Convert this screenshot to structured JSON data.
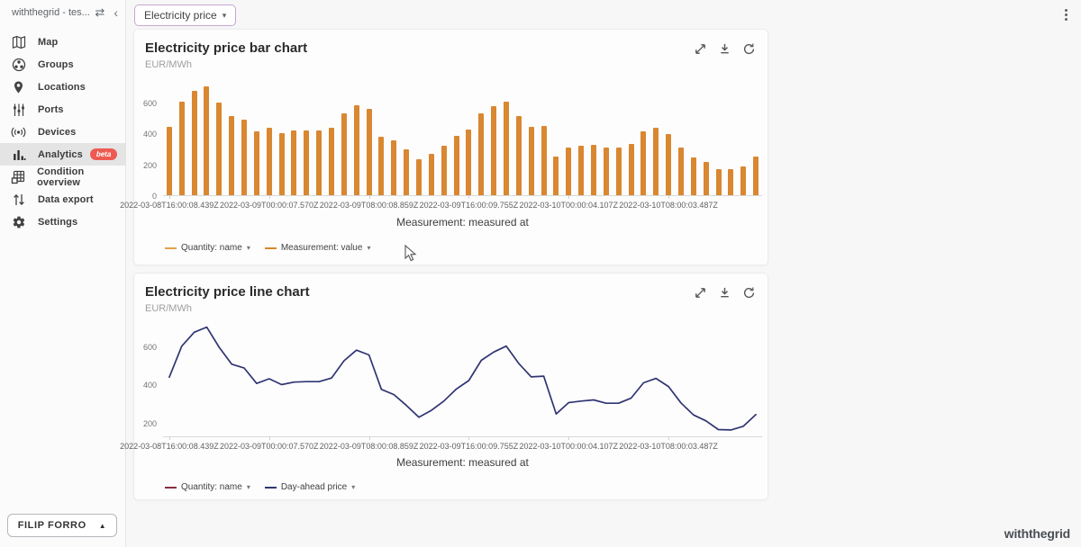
{
  "sidebar": {
    "workspace": "withthegrid - tes...",
    "items": [
      {
        "label": "Map",
        "icon": "map-icon",
        "active": false
      },
      {
        "label": "Groups",
        "icon": "groups-icon",
        "active": false
      },
      {
        "label": "Locations",
        "icon": "location-pin-icon",
        "active": false
      },
      {
        "label": "Ports",
        "icon": "ports-sliders-icon",
        "active": false
      },
      {
        "label": "Devices",
        "icon": "devices-signal-icon",
        "active": false
      },
      {
        "label": "Analytics",
        "icon": "analytics-bars-icon",
        "active": true,
        "badge": "beta"
      },
      {
        "label": "Condition overview",
        "icon": "condition-grid-icon",
        "active": false
      },
      {
        "label": "Data export",
        "icon": "data-export-arrows-icon",
        "active": false
      },
      {
        "label": "Settings",
        "icon": "settings-gear-icon",
        "active": false
      }
    ],
    "user_button": "FILIP FORRO"
  },
  "topbar": {
    "dashboard_selector": "Electricity price"
  },
  "footer": {
    "logo": "withthegrid"
  },
  "colors": {
    "bar": "#d98731",
    "line": "#303572",
    "legend_maroon": "#8b2f3f",
    "legend_orange_light": "#e3a04b",
    "active_row": "#e4e4e5",
    "beta_badge": "#ee5a52"
  },
  "chart_data": [
    {
      "type": "bar",
      "title": "Electricity price bar chart",
      "subtitle": "EUR/MWh",
      "xlabel": "Measurement: measured at",
      "ylabel": "EUR/MWh",
      "ylim": [
        0,
        715
      ],
      "y_ticks": [
        0,
        200,
        400,
        600
      ],
      "grid": false,
      "legend_position": "bottom-left",
      "x_tick_indices": [
        0,
        8,
        16,
        24,
        32,
        40
      ],
      "x_tick_labels": [
        "2022-03-08T16:00:08.439Z",
        "2022-03-09T00:00:07.570Z",
        "2022-03-09T08:00:08.859Z",
        "2022-03-09T16:00:09.755Z",
        "2022-03-10T00:00:04.107Z",
        "2022-03-10T08:00:03.487Z"
      ],
      "values": [
        442,
        604,
        676,
        703,
        598,
        510,
        490,
        410,
        434,
        404,
        417,
        419,
        419,
        438,
        528,
        583,
        558,
        379,
        352,
        295,
        234,
        270,
        318,
        381,
        425,
        530,
        573,
        604,
        514,
        444,
        448,
        251,
        310,
        318,
        324,
        307,
        307,
        333,
        413,
        436,
        394,
        309,
        246,
        215,
        170,
        168,
        187,
        248
      ],
      "color": "#d98731",
      "legend": [
        {
          "label": "Quantity: name",
          "color": "#e3a04b"
        },
        {
          "label": "Measurement: value",
          "color": "#d98731"
        }
      ]
    },
    {
      "type": "line",
      "title": "Electricity price line chart",
      "subtitle": "EUR/MWh",
      "xlabel": "Measurement: measured at",
      "ylabel": "EUR/MWh",
      "ylim": [
        130,
        715
      ],
      "y_ticks": [
        200,
        400,
        600
      ],
      "grid": false,
      "legend_position": "bottom-left",
      "x_tick_indices": [
        0,
        8,
        16,
        24,
        32,
        40
      ],
      "x_tick_labels": [
        "2022-03-08T16:00:08.439Z",
        "2022-03-09T00:00:07.570Z",
        "2022-03-09T08:00:08.859Z",
        "2022-03-09T16:00:09.755Z",
        "2022-03-10T00:00:04.107Z",
        "2022-03-10T08:00:03.487Z"
      ],
      "values": [
        442,
        604,
        676,
        703,
        598,
        510,
        490,
        410,
        434,
        404,
        417,
        419,
        419,
        438,
        528,
        583,
        558,
        379,
        352,
        295,
        234,
        270,
        318,
        381,
        425,
        530,
        573,
        604,
        514,
        444,
        448,
        251,
        310,
        318,
        324,
        307,
        307,
        333,
        413,
        436,
        394,
        309,
        246,
        215,
        170,
        168,
        187,
        248
      ],
      "color": "#303572",
      "legend": [
        {
          "label": "Quantity: name",
          "color": "#8b2f3f"
        },
        {
          "label": "Day-ahead price",
          "color": "#303572"
        }
      ]
    }
  ]
}
